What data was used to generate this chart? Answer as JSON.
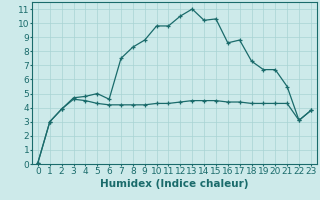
{
  "title": "",
  "xlabel": "Humidex (Indice chaleur)",
  "ylabel": "",
  "background_color": "#cdeaea",
  "line_color": "#1a6b6b",
  "grid_color": "#a8d4d4",
  "xlim": [
    -0.5,
    23.5
  ],
  "ylim": [
    0,
    11.5
  ],
  "xticks": [
    0,
    1,
    2,
    3,
    4,
    5,
    6,
    7,
    8,
    9,
    10,
    11,
    12,
    13,
    14,
    15,
    16,
    17,
    18,
    19,
    20,
    21,
    22,
    23
  ],
  "yticks": [
    0,
    1,
    2,
    3,
    4,
    5,
    6,
    7,
    8,
    9,
    10,
    11
  ],
  "line1_x": [
    0,
    1,
    2,
    3,
    4,
    5,
    6,
    7,
    8,
    9,
    10,
    11,
    12,
    13,
    14,
    15,
    16,
    17,
    18,
    19,
    20,
    21,
    22,
    23
  ],
  "line1_y": [
    0.1,
    3.0,
    3.9,
    4.7,
    4.8,
    5.0,
    4.6,
    7.5,
    8.3,
    8.8,
    9.8,
    9.8,
    10.5,
    11.0,
    10.2,
    10.3,
    8.6,
    8.8,
    7.3,
    6.7,
    6.7,
    5.5,
    3.1,
    3.8
  ],
  "line2_x": [
    0,
    1,
    2,
    3,
    4,
    5,
    6,
    7,
    8,
    9,
    10,
    11,
    12,
    13,
    14,
    15,
    16,
    17,
    18,
    19,
    20,
    21,
    22,
    23
  ],
  "line2_y": [
    0.1,
    3.0,
    3.9,
    4.6,
    4.5,
    4.3,
    4.2,
    4.2,
    4.2,
    4.2,
    4.3,
    4.3,
    4.4,
    4.5,
    4.5,
    4.5,
    4.4,
    4.4,
    4.3,
    4.3,
    4.3,
    4.3,
    3.1,
    3.8
  ],
  "xlabel_fontsize": 7.5,
  "tick_fontsize": 6.5
}
